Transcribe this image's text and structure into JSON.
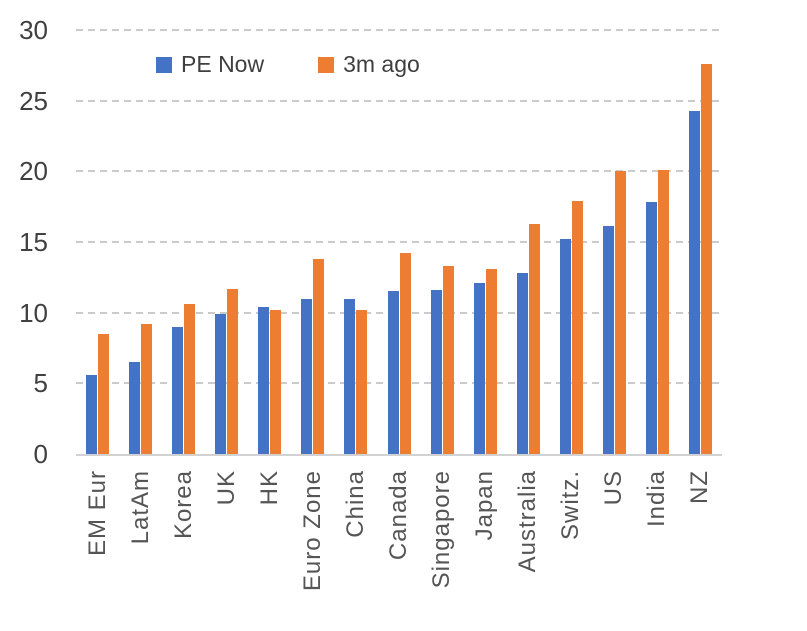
{
  "chart_data": {
    "type": "bar",
    "title": "",
    "xlabel": "",
    "ylabel": "",
    "categories": [
      "EM Eur",
      "LatAm",
      "Korea",
      "UK",
      "HK",
      "Euro Zone",
      "China",
      "Canada",
      "Singapore",
      "Japan",
      "Australia",
      "Switz.",
      "US",
      "India",
      "NZ"
    ],
    "series": [
      {
        "name": "PE Now",
        "color": "#4472C4",
        "values": [
          5.6,
          6.5,
          9.0,
          9.9,
          10.4,
          11.0,
          11.0,
          11.5,
          11.6,
          12.1,
          12.8,
          15.2,
          16.1,
          17.8,
          24.3
        ]
      },
      {
        "name": "3m ago",
        "color": "#ED7D31",
        "values": [
          8.5,
          9.2,
          10.6,
          11.7,
          10.2,
          13.8,
          10.2,
          14.2,
          13.3,
          13.1,
          16.3,
          17.9,
          20.0,
          20.1,
          27.6
        ]
      }
    ],
    "ylim": [
      0,
      30
    ],
    "yticks": [
      0,
      5,
      10,
      15,
      20,
      25,
      30
    ],
    "grid": "dashed-horizontal",
    "legend_position": "top"
  },
  "colors": {
    "grid": "#cbcbcb",
    "baseline": "#d2d2d2",
    "y_axis_text": "#404040",
    "x_axis_text": "#555555",
    "legend_text": "#3f3f3f"
  }
}
